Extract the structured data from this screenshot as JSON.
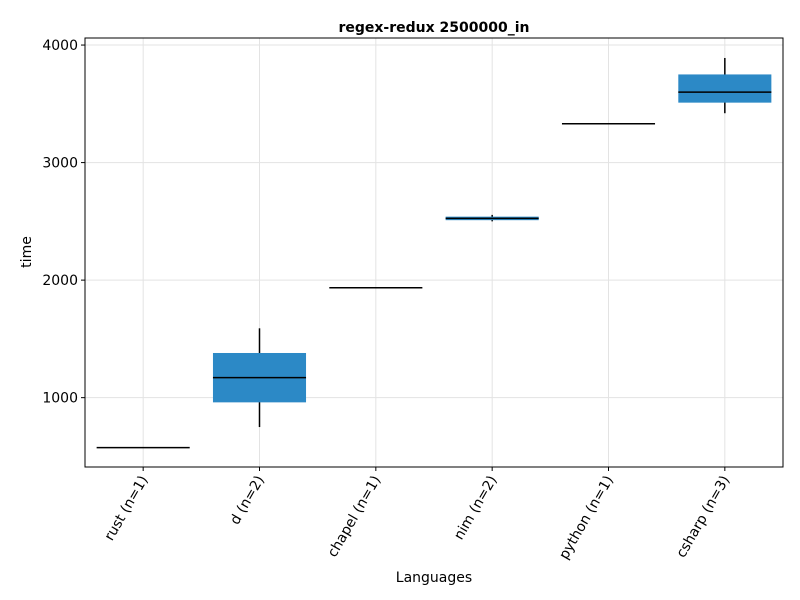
{
  "chart_data": {
    "type": "box",
    "title": "regex-redux 2500000_in",
    "xlabel": "Languages",
    "ylabel": "time",
    "categories": [
      "rust (n=1)",
      "d (n=2)",
      "chapel (n=1)",
      "nim (n=2)",
      "python (n=1)",
      "csharp (n=3)"
    ],
    "ylim": [
      410,
      4060
    ],
    "yticks": [
      1000,
      2000,
      3000,
      4000
    ],
    "grid": true,
    "box_color": "#2c89c6",
    "median_color": "#000000",
    "boxes": [
      {
        "category": "rust (n=1)",
        "min": 575,
        "q1": 575,
        "median": 575,
        "q3": 575,
        "max": 575
      },
      {
        "category": "d (n=2)",
        "min": 750,
        "q1": 960,
        "median": 1170,
        "q3": 1380,
        "max": 1590
      },
      {
        "category": "chapel (n=1)",
        "min": 1935,
        "q1": 1935,
        "median": 1935,
        "q3": 1935,
        "max": 1935
      },
      {
        "category": "nim (n=2)",
        "min": 2500,
        "q1": 2510,
        "median": 2525,
        "q3": 2540,
        "max": 2555
      },
      {
        "category": "python (n=1)",
        "min": 3330,
        "q1": 3330,
        "median": 3330,
        "q3": 3330,
        "max": 3330
      },
      {
        "category": "csharp (n=3)",
        "min": 3420,
        "q1": 3510,
        "median": 3600,
        "q3": 3750,
        "max": 3890
      }
    ]
  }
}
